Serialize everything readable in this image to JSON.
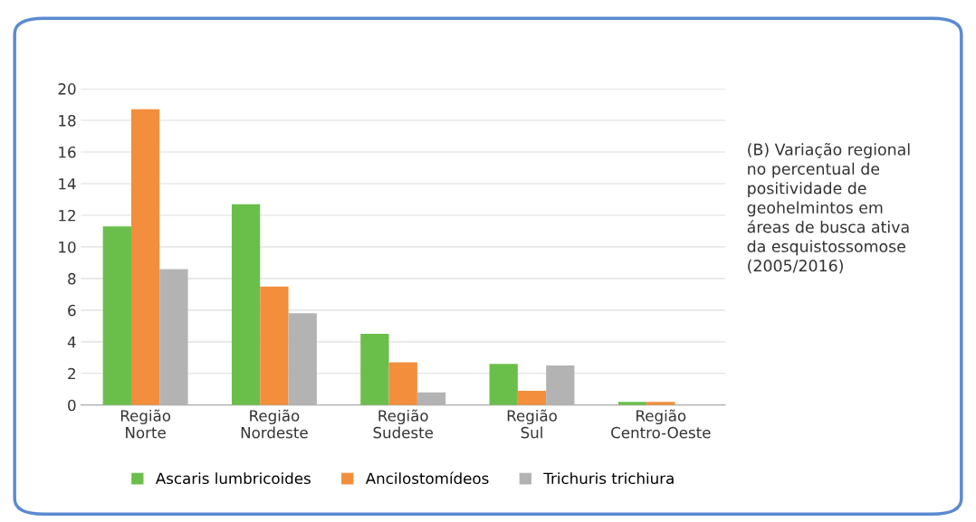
{
  "chart_data": {
    "type": "bar",
    "categories": [
      "Região\nNorte",
      "Região\nNordeste",
      "Região\nSudeste",
      "Região\nSul",
      "Região\nCentro-Oeste"
    ],
    "series": [
      {
        "name": "Ascaris lumbricoides",
        "color": "#6abf4b",
        "values": [
          11.3,
          12.7,
          4.5,
          2.6,
          0.2
        ]
      },
      {
        "name": "Ancilostomídeos",
        "color": "#f28e3c",
        "values": [
          18.7,
          7.5,
          2.7,
          0.9,
          0.2
        ]
      },
      {
        "name": "Trichuris trichiura",
        "color": "#b3b3b3",
        "values": [
          8.6,
          5.8,
          0.8,
          2.5,
          0
        ]
      }
    ],
    "ylim": [
      0,
      20
    ],
    "yticks": [
      0,
      2,
      4,
      6,
      8,
      10,
      12,
      14,
      16,
      18,
      20
    ],
    "grid": "y",
    "legend": "bottom",
    "annotations": [
      "(B) Variação regional\nno percentual de\npositividade de\ngeohelmintos em\náreas de busca ativa\nda esquistossomose\n(2005/2016)"
    ]
  }
}
